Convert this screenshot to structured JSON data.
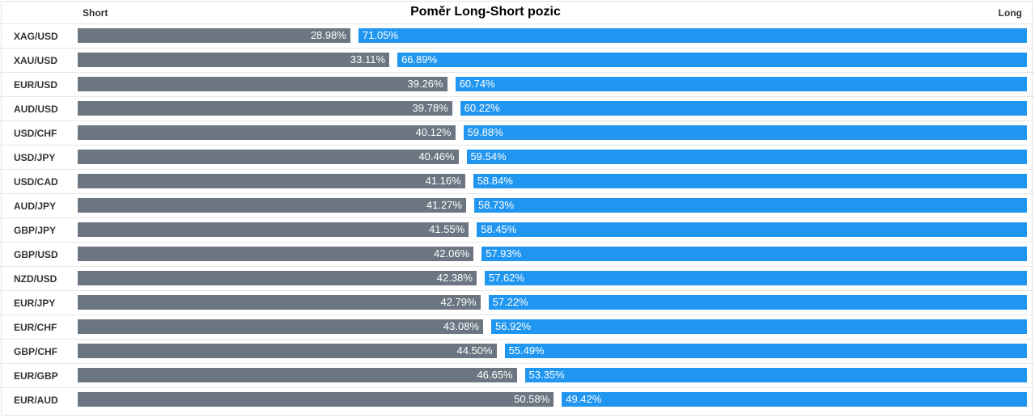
{
  "header": {
    "short_label": "Short",
    "long_label": "Long",
    "title": "Poměr Long-Short pozic"
  },
  "colors": {
    "short_bar": "#6b7682",
    "long_bar": "#2196f0"
  },
  "chart_data": {
    "type": "bar",
    "orientation": "horizontal",
    "stacked": true,
    "title": "Poměr Long-Short pozic",
    "categories": [
      "XAG/USD",
      "XAU/USD",
      "EUR/USD",
      "AUD/USD",
      "USD/CHF",
      "USD/JPY",
      "USD/CAD",
      "AUD/JPY",
      "GBP/JPY",
      "GBP/USD",
      "NZD/USD",
      "EUR/JPY",
      "EUR/CHF",
      "GBP/CHF",
      "EUR/GBP",
      "EUR/AUD"
    ],
    "series": [
      {
        "name": "Short",
        "values": [
          28.98,
          33.11,
          39.26,
          39.78,
          40.12,
          40.46,
          41.16,
          41.27,
          41.55,
          42.06,
          42.38,
          42.79,
          43.08,
          44.5,
          46.65,
          50.58
        ],
        "labels": [
          "28.98%",
          "33.11%",
          "39.26%",
          "39.78%",
          "40.12%",
          "40.46%",
          "41.16%",
          "41.27%",
          "41.55%",
          "42.06%",
          "42.38%",
          "42.79%",
          "43.08%",
          "44.50%",
          "46.65%",
          "50.58%"
        ]
      },
      {
        "name": "Long",
        "values": [
          71.05,
          66.89,
          60.74,
          60.22,
          59.88,
          59.54,
          58.84,
          58.73,
          58.45,
          57.93,
          57.62,
          57.22,
          56.92,
          55.49,
          53.35,
          49.42
        ],
        "labels": [
          "71.05%",
          "66.89%",
          "60.74%",
          "60.22%",
          "59.88%",
          "59.54%",
          "58.84%",
          "58.73%",
          "58.45%",
          "57.93%",
          "57.62%",
          "57.22%",
          "56.92%",
          "55.49%",
          "53.35%",
          "49.42%"
        ]
      }
    ]
  }
}
